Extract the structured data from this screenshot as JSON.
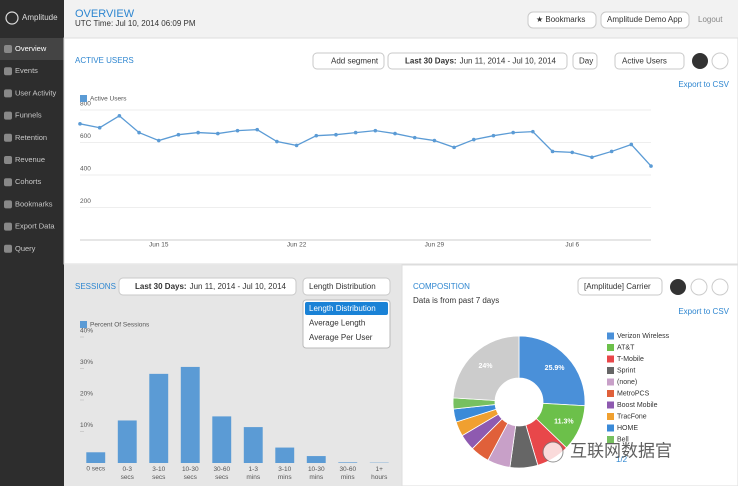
{
  "sidebar": {
    "brand": "Amplitude",
    "nav": [
      "Overview",
      "Events",
      "User Activity",
      "Funnels",
      "Retention",
      "Revenue",
      "Cohorts",
      "Bookmarks",
      "Export Data",
      "Query"
    ]
  },
  "header": {
    "title": "OVERVIEW",
    "subtitle": "UTC Time: Jul 10, 2014 06:09 PM",
    "bookmarks": "★ Bookmarks",
    "app": "Amplitude Demo App",
    "logout": "Logout"
  },
  "active_users": {
    "title": "ACTIVE USERS",
    "add_segment": "Add segment",
    "range_label": "Last 30 Days:",
    "range": "Jun 11, 2014 - Jul 10, 2014",
    "interval": "Day",
    "metric": "Active Users",
    "export": "Export to CSV",
    "chart": {
      "type": "line",
      "grid": true,
      "categories": [
        null,
        null,
        null,
        null,
        "Jun 15",
        null,
        null,
        null,
        null,
        null,
        null,
        "Jun 22",
        null,
        null,
        null,
        null,
        null,
        null,
        "Jun 29",
        null,
        null,
        null,
        null,
        null,
        null,
        "Jul 6",
        null,
        null,
        null,
        null
      ],
      "series": [
        {
          "name": "Active Users",
          "color": "#5b9bd5",
          "values": [
            715,
            691,
            764,
            661,
            612,
            648,
            661,
            655,
            673,
            679,
            606,
            582,
            642,
            648,
            661,
            673,
            655,
            630,
            612,
            570,
            618,
            642,
            661,
            667,
            545,
            539,
            509,
            545,
            588,
            455
          ]
        }
      ],
      "ylim": [
        0,
        800
      ],
      "yticks": [
        200,
        400,
        600,
        800
      ]
    }
  },
  "sessions": {
    "title": "SESSIONS",
    "range_label": "Last 30 Days:",
    "range": "Jun 11, 2014 - Jul 10, 2014",
    "mode": "Length Distribution",
    "menu": [
      "Length Distribution",
      "Average Length",
      "Average Per User"
    ],
    "chart": {
      "type": "bar",
      "grid": false,
      "categories": [
        "0 secs",
        "0-3 secs",
        "3-10 secs",
        "10-30 secs",
        "30-60 secs",
        "1-3 mins",
        "3-10 mins",
        "10-30 mins",
        "30-60 mins",
        "1+ hours"
      ],
      "series": [
        {
          "name": "Percent Of Sessions",
          "color": "#5b9bd5",
          "values": [
            3.4,
            13.5,
            28.3,
            30.5,
            14.8,
            11.4,
            4.9,
            2.2,
            0.2,
            0.1
          ]
        }
      ],
      "ylim": [
        0,
        40
      ],
      "yticks": [
        {
          "value": 10,
          "label": "10%"
        },
        {
          "value": 20,
          "label": "20%"
        },
        {
          "value": 30,
          "label": "30%"
        },
        {
          "value": 40,
          "label": "40%"
        }
      ]
    }
  },
  "composition": {
    "title": "COMPOSITION",
    "note": "Data is from past 7 days",
    "property": "[Amplitude] Carrier",
    "export": "Export to CSV",
    "page": "1/2",
    "chart": {
      "type": "pie",
      "categories": [
        "Verizon Wireless",
        "AT&T",
        "T-Mobile",
        "Sprint",
        "(none)",
        "MetroPCS",
        "Boost Mobile",
        "TracFone",
        "HOME",
        "Bell",
        null
      ],
      "values": [
        25.9,
        11.3,
        8.2,
        6.8,
        5.6,
        4.7,
        4.0,
        3.6,
        3.2,
        2.7,
        24
      ],
      "value_labels": [
        "25.9%",
        "11.3%",
        null,
        null,
        null,
        null,
        null,
        null,
        null,
        null,
        "24%"
      ],
      "colors": [
        "#4a90d9",
        "#6cc04a",
        "#e8474a",
        "#666666",
        "#c8a0c8",
        "#e0603a",
        "#8e5ab0",
        "#f0a030",
        "#3a8ad8",
        "#77c060",
        "#cccccc"
      ]
    }
  },
  "watermark": "互联网数据官"
}
